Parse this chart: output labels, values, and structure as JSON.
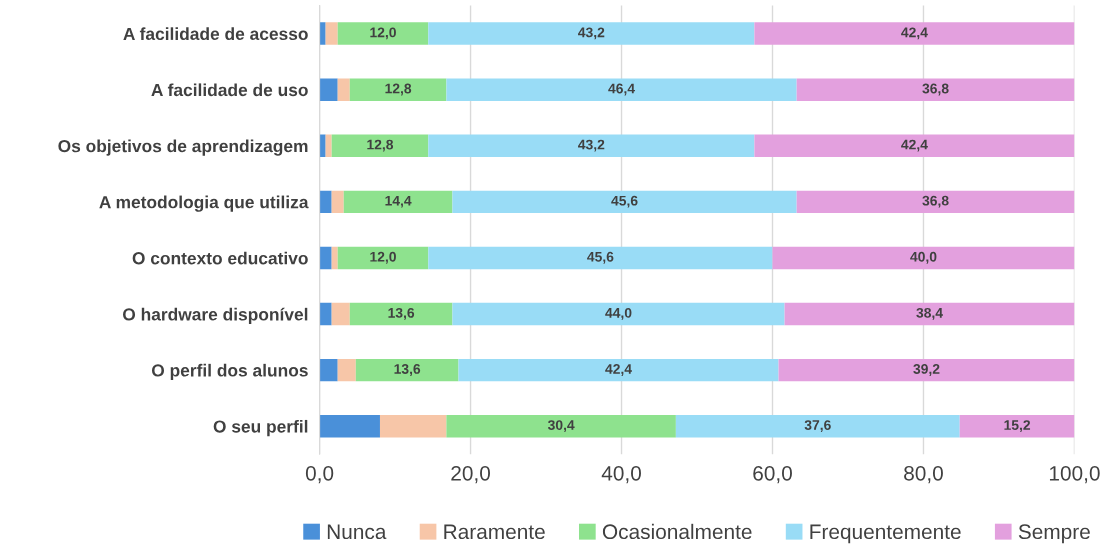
{
  "chart_data": {
    "type": "bar",
    "orientation": "horizontal",
    "stacked": true,
    "grid": "x",
    "legend": "bottom",
    "categories": [
      "A facilidade de acesso",
      "A facilidade de uso",
      "Os objetivos de aprendizagem",
      "A metodologia que utiliza",
      "O contexto educativo",
      "O hardware disponível",
      "O perfil dos alunos",
      "O seu perfil"
    ],
    "xlim": [
      0,
      100
    ],
    "xticks": [
      {
        "value": 0,
        "label": "0,0"
      },
      {
        "value": 20,
        "label": "20,0"
      },
      {
        "value": 40,
        "label": "40,0"
      },
      {
        "value": 60,
        "label": "60,0"
      },
      {
        "value": 80,
        "label": "80,0"
      },
      {
        "value": 100,
        "label": "100,0"
      }
    ],
    "series": [
      {
        "name": "Nunca",
        "color": "#4a90d9",
        "values": [
          0.8,
          2.4,
          0.8,
          1.6,
          1.6,
          1.6,
          2.4,
          8.0
        ],
        "value_labels": [
          null,
          null,
          null,
          null,
          null,
          null,
          null,
          null
        ]
      },
      {
        "name": "Raramente",
        "color": "#f7c6a8",
        "values": [
          1.6,
          1.6,
          0.8,
          1.6,
          0.8,
          2.4,
          2.4,
          8.8
        ],
        "value_labels": [
          null,
          null,
          null,
          null,
          null,
          null,
          null,
          null
        ]
      },
      {
        "name": "Ocasionalmente",
        "color": "#8ee28e",
        "values": [
          12.0,
          12.8,
          12.8,
          14.4,
          12.0,
          13.6,
          13.6,
          30.4
        ],
        "value_labels": [
          "12,0",
          "12,8",
          "12,8",
          "14,4",
          "12,0",
          "13,6",
          "13,6",
          "30,4"
        ]
      },
      {
        "name": "Frequentemente",
        "color": "#99dcf6",
        "values": [
          43.2,
          46.4,
          43.2,
          45.6,
          45.6,
          44.0,
          42.4,
          37.6
        ],
        "value_labels": [
          "43,2",
          "46,4",
          "43,2",
          "45,6",
          "45,6",
          "44,0",
          "42,4",
          "37,6"
        ]
      },
      {
        "name": "Sempre",
        "color": "#e3a0de",
        "values": [
          42.4,
          36.8,
          42.4,
          36.8,
          40.0,
          38.4,
          39.2,
          15.2
        ],
        "value_labels": [
          "42,4",
          "36,8",
          "42,4",
          "36,8",
          "40,0",
          "38,4",
          "39,2",
          "15,2"
        ]
      }
    ]
  }
}
